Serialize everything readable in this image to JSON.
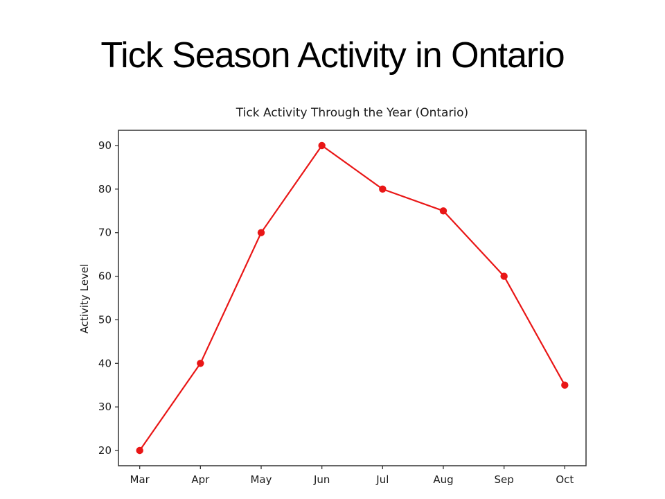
{
  "slide": {
    "title": "Tick Season Activity in Ontario",
    "background": "#ffffff"
  },
  "chart_data": {
    "type": "line",
    "title": "Tick Activity Through the Year (Ontario)",
    "ylabel": "Activity Level",
    "xlabel": "",
    "categories": [
      "Mar",
      "Apr",
      "May",
      "Jun",
      "Jul",
      "Aug",
      "Sep",
      "Oct"
    ],
    "series": [
      {
        "values": [
          20,
          40,
          70,
          90,
          80,
          75,
          60,
          35
        ],
        "color": "#e91616",
        "marker": "circle",
        "line_width": 2.2
      }
    ],
    "yticks": [
      20,
      30,
      40,
      50,
      60,
      70,
      80,
      90
    ],
    "ylim": [
      16.5,
      93.5
    ],
    "grid": false,
    "legend_position": "none",
    "axis_color": "#333333",
    "text_color": "#1a1a1a"
  }
}
